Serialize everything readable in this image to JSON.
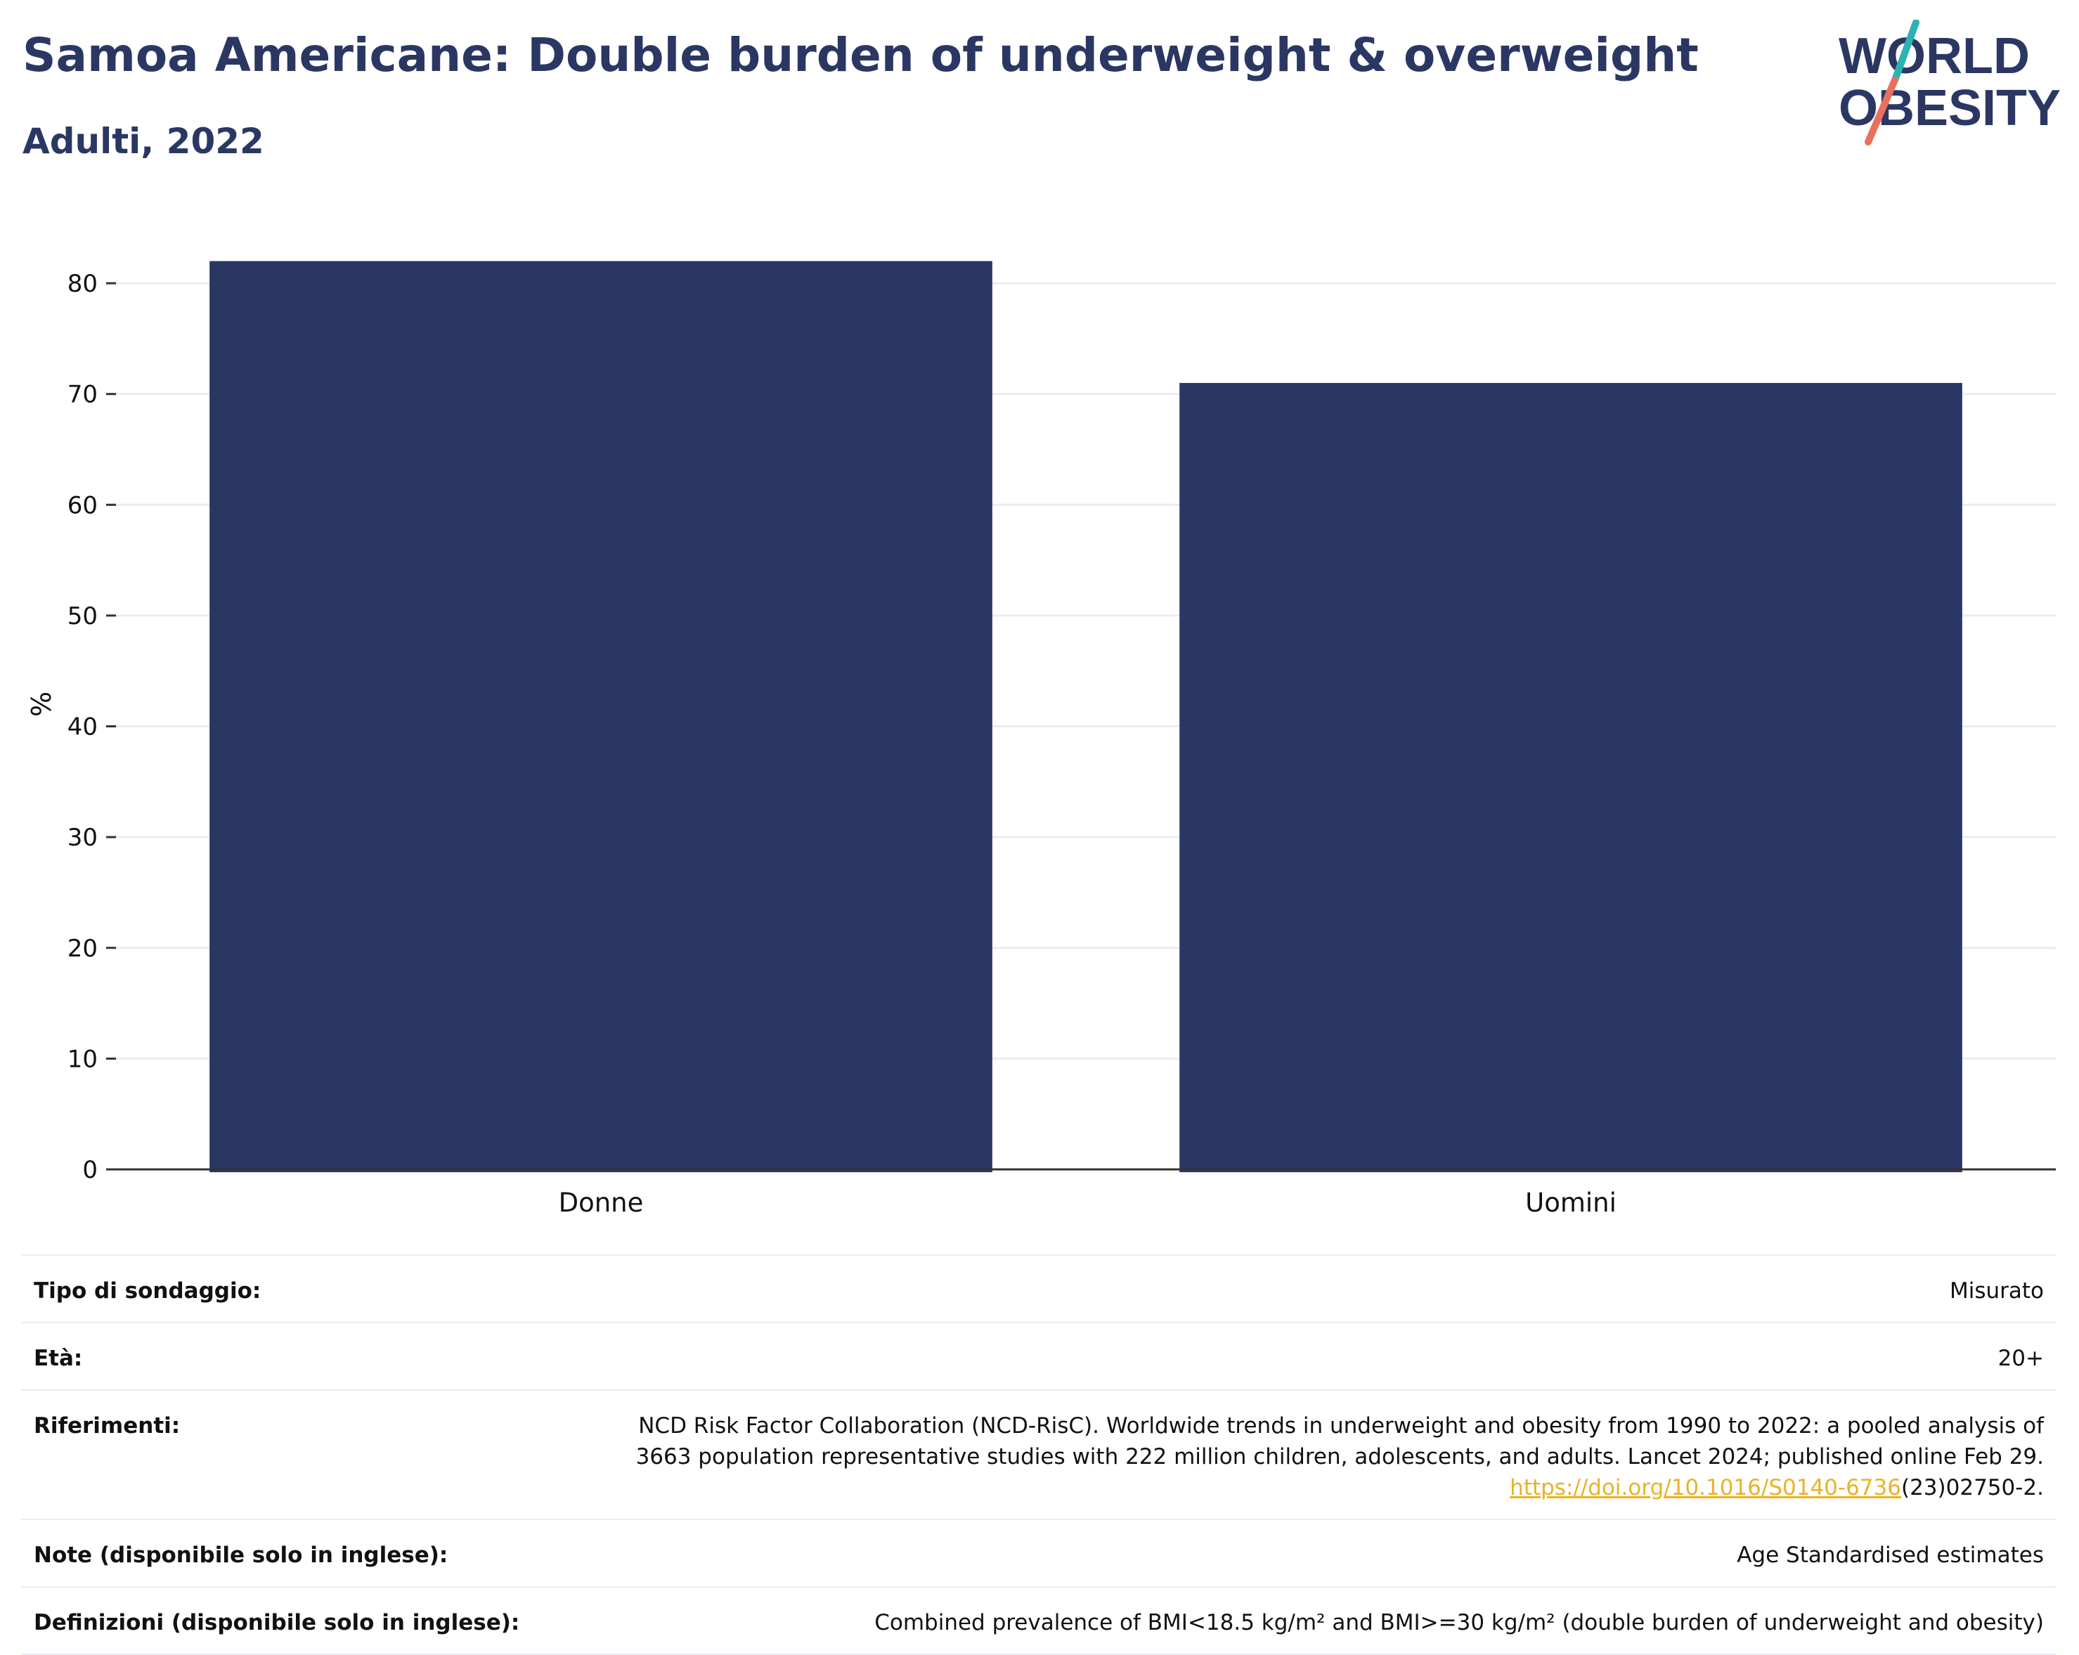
{
  "header": {
    "title": "Samoa Americane: Double burden of underweight & overweight",
    "subtitle": "Adulti, 2022"
  },
  "logo": {
    "line1": "WORLD",
    "line2": "OBESITY",
    "accent_teal": "#2bb3b1",
    "accent_coral": "#e8705e"
  },
  "colors": {
    "bar": "#2b3763",
    "title": "#2b3763",
    "grid": "#e8ecf5",
    "axis": "#333333",
    "link": "#e8b325"
  },
  "chart_data": {
    "type": "bar",
    "categories": [
      "Donne",
      "Uomini"
    ],
    "values": [
      82,
      71
    ],
    "ylabel": "%",
    "xlabel": "",
    "ylim": [
      0,
      84
    ],
    "yticks": [
      0,
      10,
      20,
      30,
      40,
      50,
      60,
      70,
      80
    ],
    "grid": true
  },
  "info": {
    "survey": {
      "label": "Tipo di sondaggio:",
      "value": "Misurato"
    },
    "age": {
      "label": "Età:",
      "value": "20+"
    },
    "references": {
      "label": "Riferimenti:",
      "line1": "NCD Risk Factor Collaboration (NCD-RisC). Worldwide trends in underweight and obesity from 1990 to 2022: a pooled analysis of",
      "line2": "3663 population representative studies with 222 million children, adolescents, and adults. Lancet 2024; published online Feb 29.",
      "link": "https://doi.org/10.1016/S0140-6736",
      "suffix": "(23)02750-2."
    },
    "notes": {
      "label": "Note (disponibile solo in inglese):",
      "value": "Age Standardised estimates"
    },
    "definitions": {
      "label": "Definizioni (disponibile solo in inglese):",
      "value": "Combined prevalence of BMI<18.5 kg/m² and BMI>=30 kg/m² (double burden of underweight and obesity)"
    }
  }
}
